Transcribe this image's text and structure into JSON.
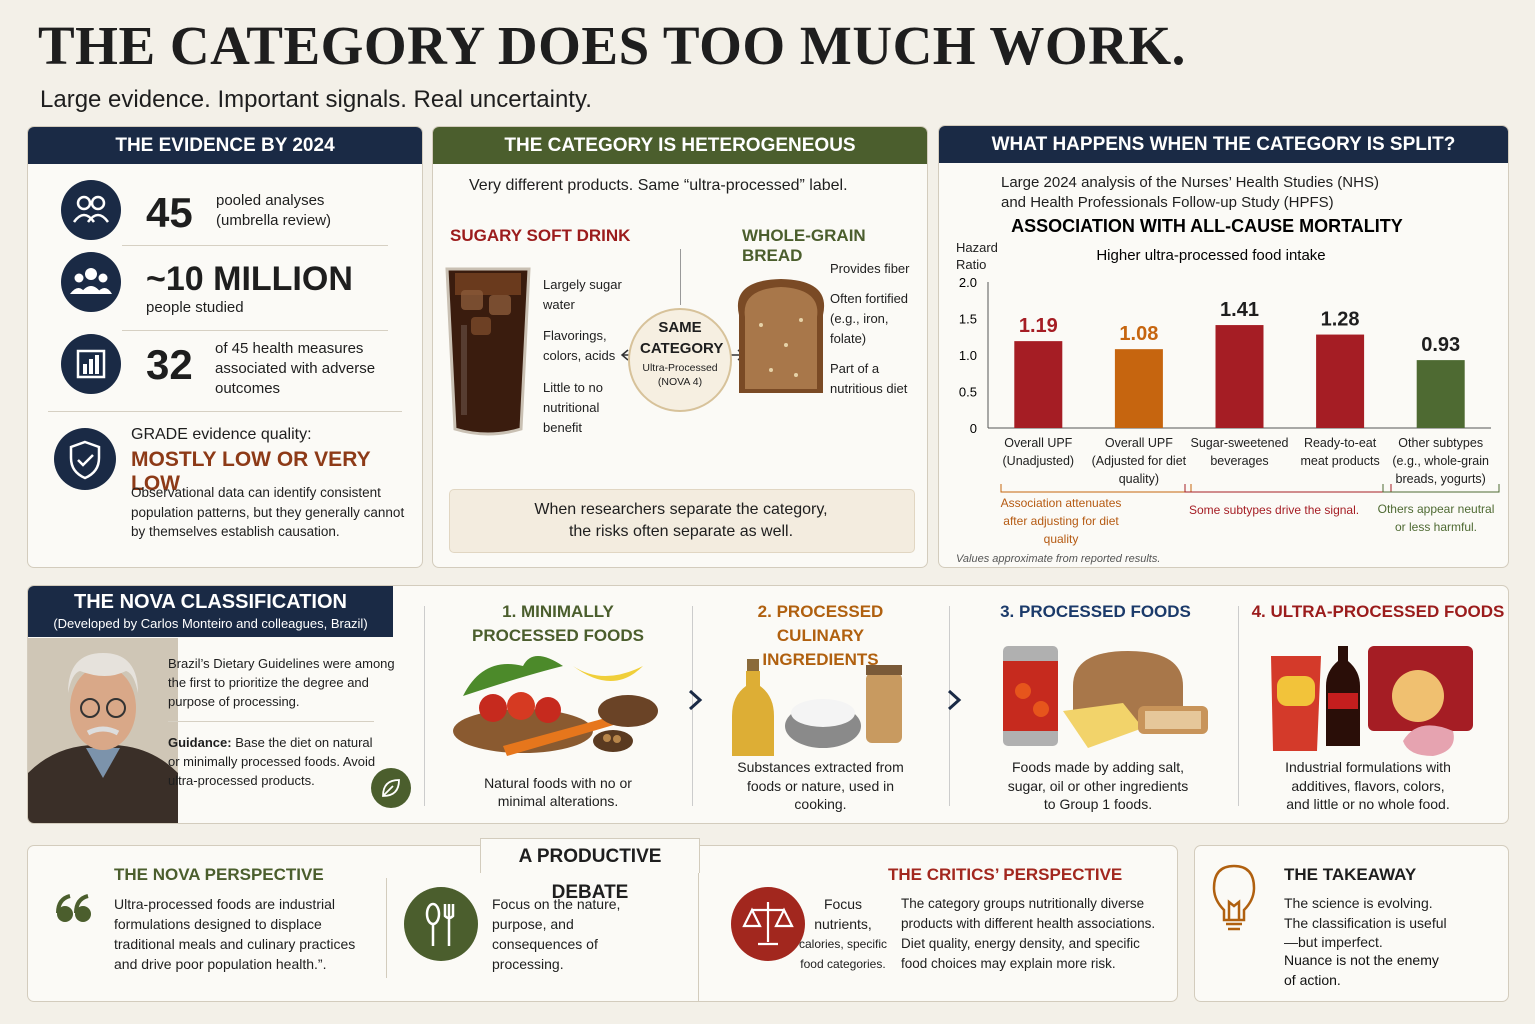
{
  "header": {
    "title": "THE CATEGORY DOES TOO MUCH WORK.",
    "subtitle": "Large evidence. Important signals. Real uncertainty."
  },
  "evidence": {
    "heading": "THE EVIDENCE BY 2024",
    "stats": [
      {
        "number": 45,
        "label": "pooled analyses (umbrella review)"
      },
      {
        "number": "~10 MILLION",
        "label": "people studied"
      },
      {
        "number": 32,
        "label": "of 45 health measures associated with adverse outcomes"
      }
    ],
    "grade_label": "GRADE evidence quality:",
    "grade_value": "MOSTLY LOW OR VERY LOW",
    "note": "Observational data can identify consistent population patterns, but they generally cannot by themselves establish causation."
  },
  "heterogeneous": {
    "heading": "THE CATEGORY IS HETEROGENEOUS",
    "intro": "Very different products. Same “ultra-processed” label.",
    "left": {
      "title": "SUGARY SOFT DRINK",
      "bullets": [
        "Largely sugar water",
        "Flavorings, colors, acids",
        "Little to no nutritional benefit"
      ]
    },
    "right": {
      "title": "WHOLE-GRAIN BREAD",
      "bullets": [
        "Provides fiber",
        "Often fortified (e.g., iron, folate)",
        "Part of a nutritious diet"
      ]
    },
    "center": {
      "title": "SAME CATEGORY",
      "subtitle": "Ultra-Processed (NOVA 4)"
    },
    "footer": "When researchers separate the category, the risks often separate as well."
  },
  "split": {
    "heading": "WHAT HAPPENS WHEN THE CATEGORY IS SPLIT?",
    "intro": "Large 2024 analysis of the Nurses’ Health Studies (NHS) and Health Professionals Follow-up Study (HPFS)",
    "annotations": [
      "Association attenuates after adjusting for diet quality",
      "Some subtypes drive the signal.",
      "Others appear neutral or less harmful."
    ],
    "note": "Values approximate from reported results."
  },
  "chart_data": {
    "type": "bar",
    "title": "ASSOCIATION WITH ALL-CAUSE MORTALITY",
    "subtitle": "Higher ultra-processed food intake",
    "y_label": "Hazard Ratio",
    "categories": [
      "Overall UPF (Unadjusted)",
      "Overall UPF (Adjusted for diet quality)",
      "Sugar-sweetened beverages",
      "Ready-to-eat meat products",
      "Other subtypes (e.g., whole-grain breads, yogurts)"
    ],
    "values": [
      1.19,
      1.08,
      1.41,
      1.28,
      0.93
    ],
    "colors": [
      "#a51d24",
      "#c6650f",
      "#a51d24",
      "#a51d24",
      "#4e6a32"
    ],
    "value_label_colors": [
      "#a51d24",
      "#c6650f",
      "#1e1e1e",
      "#1e1e1e",
      "#1e1e1e"
    ],
    "ylim": [
      0,
      2
    ],
    "yticks": [
      0,
      0.5,
      {
        "value": 1,
        "label": "1.0"
      },
      1.5,
      {
        "value": 2,
        "label": "2.0"
      }
    ],
    "grid": false
  },
  "nova": {
    "heading": "THE NOVA CLASSIFICATION",
    "subheading": "(Developed by Carlos Monteiro and colleagues, Brazil)",
    "text": "Brazil’s Dietary Guidelines were among the first to prioritize the degree and purpose of processing.",
    "guidance_label": "Guidance:",
    "guidance": "Base the diet on natural or minimally processed foods. Avoid ultra-processed products.",
    "groups": [
      {
        "title": "1. MINIMALLY PROCESSED FOODS",
        "desc": "Natural foods with no or minimal alterations."
      },
      {
        "title": "2. PROCESSED CULINARY INGREDIENTS",
        "desc": "Substances extracted from foods or nature, used in cooking."
      },
      {
        "title": "3. PROCESSED FOODS",
        "desc": "Foods made by adding salt, sugar, oil or other ingredients to Group 1 foods."
      },
      {
        "title": "4. ULTRA-PROCESSED FOODS",
        "desc": "Industrial formulations with additives, flavors, colors, and little or no whole food."
      }
    ]
  },
  "debate": {
    "heading": "A PRODUCTIVE DEBATE",
    "nova": {
      "title": "THE NOVA PERSPECTIVE",
      "quote": "Ultra-processed foods are industrial formulations designed to displace traditional meals and culinary practices and drive poor population health.”.",
      "focus": "Focus on the nature, purpose, and consequences of processing."
    },
    "critics": {
      "title": "THE CRITICS’ PERSPECTIVE",
      "focus_main": "Focus nutrients,",
      "focus_rest": "calories, specific food categories.",
      "text": "The category groups nutritionally diverse products with different health associations. Diet quality, energy density, and specific food choices may explain more risk."
    }
  },
  "takeaway": {
    "title": "THE TAKEAWAY",
    "text": "The science is evolving. The classification is useful—but imperfect.",
    "emphasis": "Nuance is not the enemy of action."
  }
}
